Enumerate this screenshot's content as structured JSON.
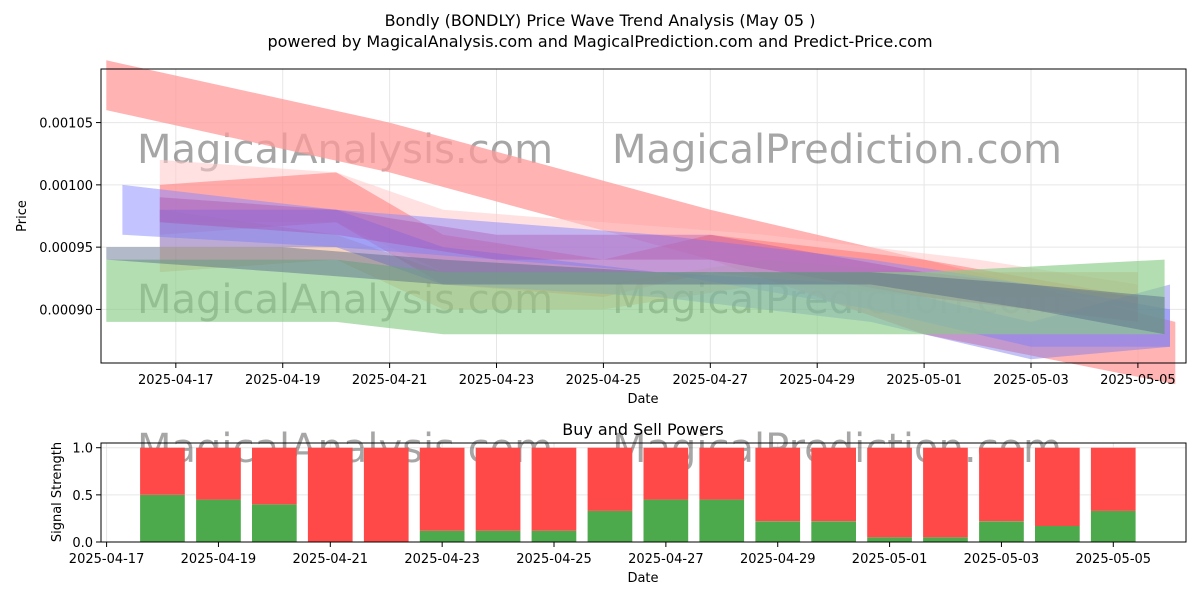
{
  "header": {
    "title": "Bondly (BONDLY) Price Wave Trend Analysis (May 05 )",
    "subtitle": "powered by MagicalAnalysis.com and MagicalPrediction.com and Predict-Price.com"
  },
  "watermarks": [
    "MagicalAnalysis.com",
    "MagicalPrediction.com"
  ],
  "chart_data": [
    {
      "type": "area",
      "title": "",
      "xlabel": "Date",
      "ylabel": "Price",
      "x_ticks": [
        "2025-04-17",
        "2025-04-19",
        "2025-04-21",
        "2025-04-23",
        "2025-04-25",
        "2025-04-27",
        "2025-04-29",
        "2025-05-01",
        "2025-05-03",
        "2025-05-05"
      ],
      "y_ticks": [
        "0.00090",
        "0.00095",
        "0.00100",
        "0.00105"
      ],
      "xlim": [
        "2025-04-15.6",
        "2025-05-05.9"
      ],
      "ylim": [
        0.000857,
        0.001093
      ],
      "grid": true,
      "bands": [
        {
          "color": "#ff9999",
          "opacity": 0.75,
          "x": [
            "2025-04-15.7",
            "2025-04-21",
            "2025-04-27",
            "2025-05-01",
            "2025-05-05.7"
          ],
          "upper": [
            0.0011,
            0.00105,
            0.00098,
            0.00094,
            0.00089
          ],
          "lower": [
            0.00106,
            0.00101,
            0.00094,
            0.00088,
            0.00084
          ]
        },
        {
          "color": "#ffc8c8",
          "opacity": 0.55,
          "x": [
            "2025-04-16.7",
            "2025-04-20",
            "2025-04-22",
            "2025-04-25",
            "2025-04-28",
            "2025-05-02",
            "2025-05-05"
          ],
          "upper": [
            0.00102,
            0.00101,
            0.00098,
            0.00097,
            0.00096,
            0.00094,
            0.00092
          ],
          "lower": [
            0.00097,
            0.00097,
            0.00093,
            0.00092,
            0.00093,
            0.00092,
            0.0009
          ]
        },
        {
          "color": "#ff6666",
          "opacity": 0.45,
          "x": [
            "2025-04-16.7",
            "2025-04-20",
            "2025-04-22",
            "2025-04-25",
            "2025-04-27",
            "2025-05-01",
            "2025-05-05"
          ],
          "upper": [
            0.001,
            0.00101,
            0.00096,
            0.00094,
            0.00096,
            0.00094,
            0.00091
          ],
          "lower": [
            0.00096,
            0.00097,
            0.00092,
            0.00091,
            0.00093,
            0.00091,
            0.00089
          ]
        },
        {
          "color": "#e8a070",
          "opacity": 0.45,
          "x": [
            "2025-04-16.7",
            "2025-04-20",
            "2025-04-22",
            "2025-04-25",
            "2025-04-28",
            "2025-05-01",
            "2025-05-05"
          ],
          "upper": [
            0.00098,
            0.00096,
            0.00093,
            0.00092,
            0.00094,
            0.00093,
            0.00093
          ],
          "lower": [
            0.00093,
            0.00094,
            0.0009,
            0.0009,
            0.00092,
            0.00091,
            0.00091
          ]
        },
        {
          "color": "#8888ff",
          "opacity": 0.5,
          "x": [
            "2025-04-16",
            "2025-04-20",
            "2025-04-23",
            "2025-04-26",
            "2025-04-30",
            "2025-05-03",
            "2025-05-05.6"
          ],
          "upper": [
            0.001,
            0.00098,
            0.00097,
            0.00096,
            0.00094,
            0.00092,
            0.0009
          ],
          "lower": [
            0.00096,
            0.00095,
            0.00094,
            0.00093,
            0.0009,
            0.00087,
            0.00087
          ]
        },
        {
          "color": "#7777ee",
          "opacity": 0.45,
          "x": [
            "2025-04-16.7",
            "2025-04-20",
            "2025-04-22",
            "2025-04-26",
            "2025-04-30",
            "2025-05-03",
            "2025-05-05.6"
          ],
          "upper": [
            0.00098,
            0.00098,
            0.00095,
            0.00093,
            0.00092,
            0.00089,
            0.00092
          ],
          "lower": [
            0.00095,
            0.00095,
            0.00092,
            0.00091,
            0.00089,
            0.00086,
            0.00087
          ]
        },
        {
          "color": "#aa44aa",
          "opacity": 0.35,
          "x": [
            "2025-04-16.7",
            "2025-04-20",
            "2025-04-23",
            "2025-04-27",
            "2025-05-01",
            "2025-05-05"
          ],
          "upper": [
            0.00099,
            0.00098,
            0.00096,
            0.00096,
            0.00093,
            0.00091
          ],
          "lower": [
            0.00097,
            0.00096,
            0.00094,
            0.00094,
            0.00091,
            0.00089
          ]
        },
        {
          "color": "#88cc88",
          "opacity": 0.65,
          "x": [
            "2025-04-15.7",
            "2025-04-20",
            "2025-04-22",
            "2025-04-25",
            "2025-04-28",
            "2025-05-01",
            "2025-05-05.5"
          ],
          "upper": [
            0.00094,
            0.00094,
            0.00093,
            0.00093,
            0.00093,
            0.00093,
            0.00094
          ],
          "lower": [
            0.00089,
            0.00089,
            0.00088,
            0.00088,
            0.00088,
            0.00088,
            0.00088
          ]
        },
        {
          "color": "#556688",
          "opacity": 0.45,
          "x": [
            "2025-04-15.7",
            "2025-04-19",
            "2025-04-22",
            "2025-04-26",
            "2025-04-30",
            "2025-05-03",
            "2025-05-05.5"
          ],
          "upper": [
            0.00095,
            0.00095,
            0.00094,
            0.00093,
            0.00093,
            0.00092,
            0.00091
          ],
          "lower": [
            0.00094,
            0.00093,
            0.00092,
            0.00092,
            0.00092,
            0.0009,
            0.00088
          ]
        }
      ]
    },
    {
      "type": "bar",
      "title": "Buy and Sell Powers",
      "xlabel": "Date",
      "ylabel": "Signal Strength",
      "x_ticks": [
        "2025-04-17",
        "2025-04-19",
        "2025-04-21",
        "2025-04-23",
        "2025-04-25",
        "2025-04-27",
        "2025-04-29",
        "2025-05-01",
        "2025-05-03",
        "2025-05-05"
      ],
      "y_ticks": [
        "0.0",
        "0.5",
        "1.0"
      ],
      "xlim": [
        "2025-04-16.9",
        "2025-05-06.3"
      ],
      "ylim": [
        0,
        1.05
      ],
      "grid": true,
      "categories": [
        "2025-04-18",
        "2025-04-19",
        "2025-04-20",
        "2025-04-21",
        "2025-04-22",
        "2025-04-23",
        "2025-04-24",
        "2025-04-25",
        "2025-04-26",
        "2025-04-27",
        "2025-04-28",
        "2025-04-29",
        "2025-04-30",
        "2025-05-01",
        "2025-05-02",
        "2025-05-03",
        "2025-05-04",
        "2025-05-05"
      ],
      "series": [
        {
          "color": "#4caa4c",
          "values": [
            0.5,
            0.45,
            0.4,
            0.0,
            0.0,
            0.12,
            0.12,
            0.12,
            0.33,
            0.45,
            0.45,
            0.22,
            0.22,
            0.05,
            0.05,
            0.22,
            0.17,
            0.33
          ]
        },
        {
          "color": "#ff4848",
          "values": [
            0.5,
            0.55,
            0.6,
            1.0,
            1.0,
            0.88,
            0.88,
            0.88,
            0.67,
            0.55,
            0.55,
            0.78,
            0.78,
            0.95,
            0.95,
            0.78,
            0.83,
            0.67
          ]
        }
      ]
    }
  ]
}
